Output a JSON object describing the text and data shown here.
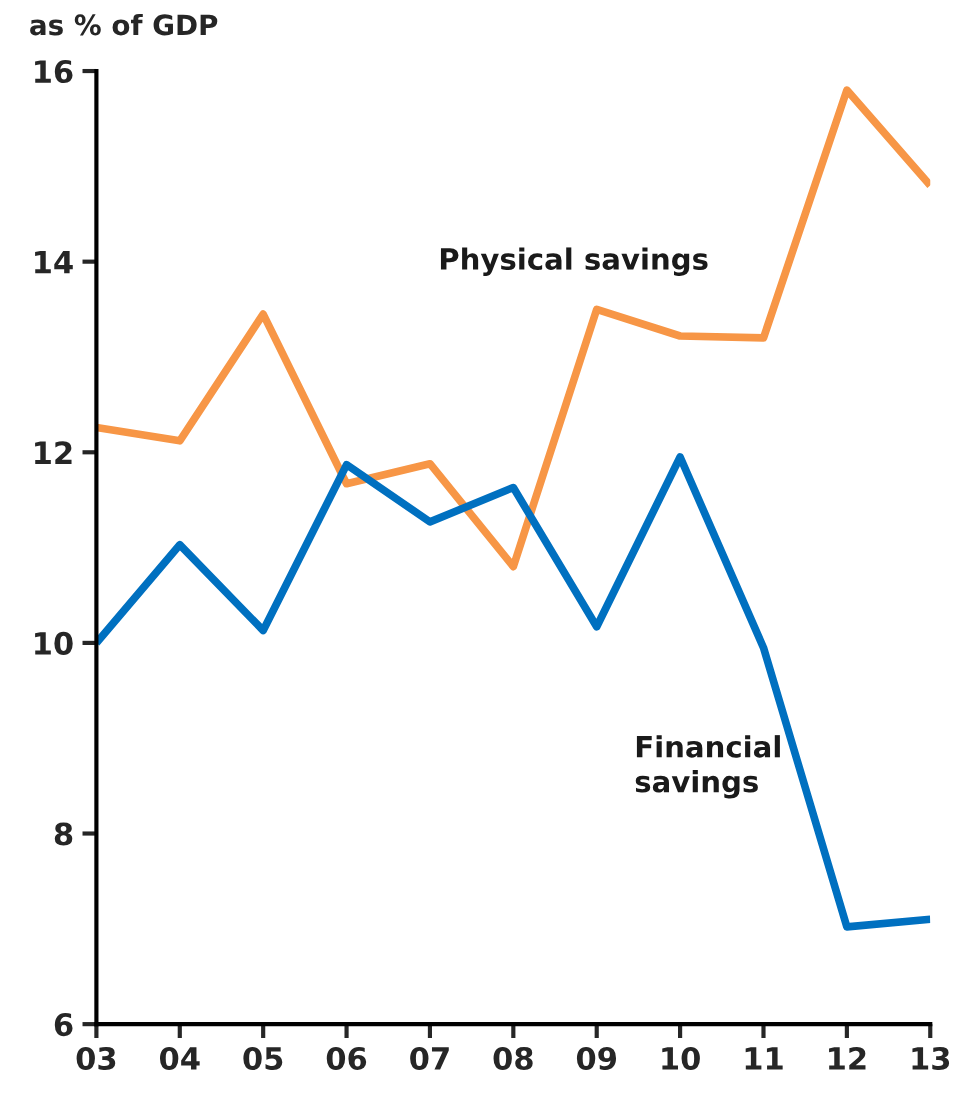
{
  "chart_data": {
    "type": "line",
    "ylabel": "as % of GDP",
    "categories": [
      "03",
      "04",
      "05",
      "06",
      "07",
      "08",
      "09",
      "10",
      "11",
      "12",
      "13"
    ],
    "series": [
      {
        "name": "Physical savings",
        "color": "#f79646",
        "values": [
          12.26,
          12.12,
          13.45,
          11.67,
          11.88,
          10.8,
          13.5,
          13.22,
          13.2,
          15.8,
          14.8
        ]
      },
      {
        "name": "Financial\nsavings",
        "color": "#0070c0",
        "values": [
          10.0,
          11.03,
          10.13,
          11.87,
          11.27,
          11.63,
          10.17,
          11.95,
          9.95,
          7.02,
          7.1
        ]
      }
    ],
    "ylim": [
      6,
      16
    ],
    "yticks": [
      6,
      8,
      10,
      12,
      14,
      16
    ],
    "grid": false,
    "legend": false,
    "marker": "none",
    "line_style": "solid"
  }
}
